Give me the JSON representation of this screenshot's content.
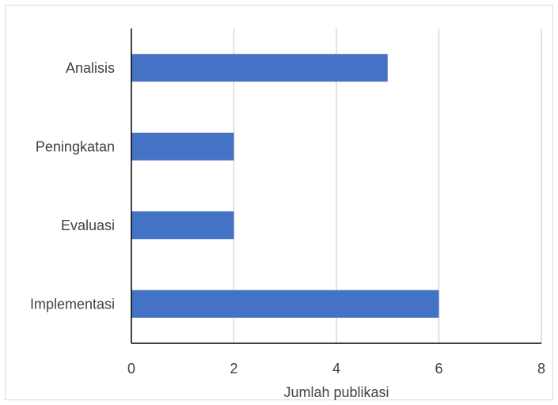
{
  "chart_data": {
    "type": "bar",
    "orientation": "horizontal",
    "categories": [
      "Analisis",
      "Peningkatan",
      "Evaluasi",
      "Implementasi"
    ],
    "values": [
      5,
      2,
      2,
      6
    ],
    "title": "",
    "xlabel": "Jumlah publikasi",
    "ylabel": "",
    "xlim": [
      0,
      8
    ],
    "xticks": [
      0,
      2,
      4,
      6,
      8
    ],
    "grid": "vertical",
    "legend": "none",
    "bar_color": "#4472c4",
    "grid_color": "#d9d9d9",
    "axis_color": "#000000"
  }
}
